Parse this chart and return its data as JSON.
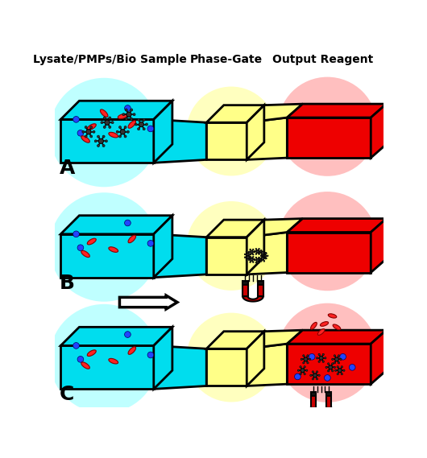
{
  "title_left": "Lysate/PMPs/Bio Sample",
  "title_center": "Phase-Gate",
  "title_right": "Output Reagent",
  "label_A": "A",
  "label_B": "B",
  "label_C": "C",
  "cyan_color": "#00DDEE",
  "yellow_color": "#FFFF88",
  "red_color": "#EE0000",
  "black": "#000000",
  "white": "#FFFFFF",
  "bg": "#FFFFFF",
  "cyan_circle": "#AAFFFF",
  "yellow_circle": "#FFFFAA",
  "red_circle": "#FFAAAA",
  "magnet_red": "#CC0000",
  "magnet_black": "#111111",
  "pmp_color": "#333333",
  "na_color": "#FF2222",
  "na_edge": "#880000",
  "blue_dot": "#2244FF"
}
